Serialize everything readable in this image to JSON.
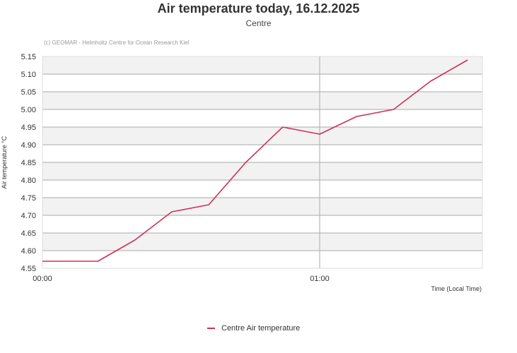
{
  "header": {
    "title": "Air temperature today, 16.12.2025",
    "subtitle": "Centre",
    "credit": "(c) GEOMAR - Helmholtz Centre for Ocean Research Kiel"
  },
  "colors": {
    "series": "#d0305a",
    "band": "#f2f2f2",
    "grid": "#aaaaaa"
  },
  "chart_data": {
    "type": "line",
    "title": "Air temperature today, 16.12.2025",
    "subtitle": "Centre",
    "xlabel": "Time (Local Time)",
    "ylabel": "Air temperature °C",
    "ylim": [
      4.55,
      5.15
    ],
    "yticks": [
      "4.55",
      "4.60",
      "4.65",
      "4.70",
      "4.75",
      "4.80",
      "4.85",
      "4.90",
      "4.95",
      "5.00",
      "5.05",
      "5.10",
      "5.15"
    ],
    "xticks": [
      "00:00",
      "01:00"
    ],
    "grid": true,
    "legend_position": "bottom",
    "x": [
      "00:00",
      "00:06",
      "00:12",
      "00:18",
      "00:24",
      "00:30",
      "00:36",
      "00:42",
      "00:48",
      "00:54",
      "01:00",
      "01:06",
      "01:12",
      "01:18",
      "01:24",
      "01:30"
    ],
    "series": [
      {
        "name": "Centre Air temperature",
        "points": [
          {
            "t_min": 0,
            "v": 4.57
          },
          {
            "t_min": 12,
            "v": 4.57
          },
          {
            "t_min": 20,
            "v": 4.63
          },
          {
            "t_min": 28,
            "v": 4.71
          },
          {
            "t_min": 36,
            "v": 4.73
          },
          {
            "t_min": 44,
            "v": 4.85
          },
          {
            "t_min": 52,
            "v": 4.95
          },
          {
            "t_min": 60,
            "v": 4.93
          },
          {
            "t_min": 68,
            "v": 4.98
          },
          {
            "t_min": 76,
            "v": 5.0
          },
          {
            "t_min": 84,
            "v": 5.08
          },
          {
            "t_min": 92,
            "v": 5.14
          }
        ]
      }
    ]
  },
  "legend": {
    "label": "Centre Air temperature"
  }
}
